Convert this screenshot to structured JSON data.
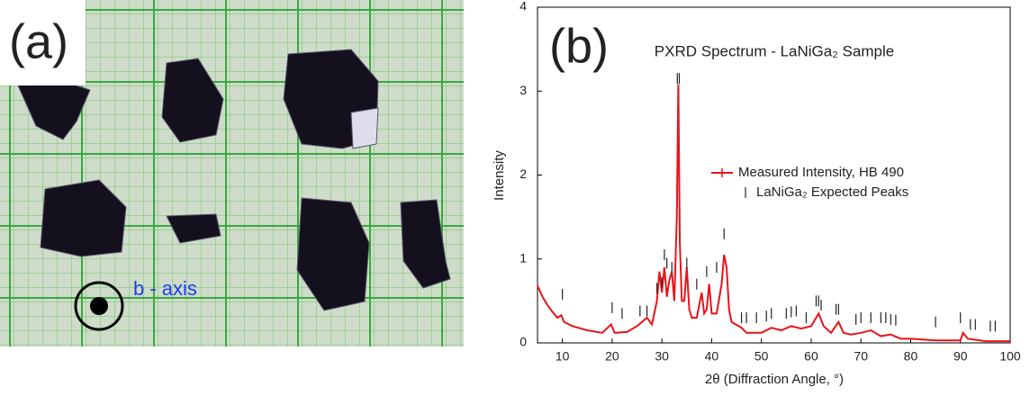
{
  "panel_a": {
    "label": "(a)",
    "annotation": "b - axis"
  },
  "chart_data": {
    "type": "line",
    "panel_label": "(b)",
    "title": "PXRD Spectrum - LaNiGa₂ Sample",
    "x_label": "2θ (Diffraction Angle, °)",
    "y_label": "Intensity",
    "xlim": [
      5,
      100
    ],
    "xticks": [
      10,
      20,
      30,
      40,
      50,
      60,
      70,
      80,
      90,
      100
    ],
    "ylim": [
      0,
      4
    ],
    "yticks": [
      0,
      1,
      2,
      3,
      4
    ],
    "grid": false,
    "series": [
      {
        "name": "Measured Intensity, HB 490",
        "color": "#e8141b",
        "marker": "+",
        "x": [
          5,
          6,
          7,
          8,
          9,
          9.8,
          10.3,
          12,
          15,
          18,
          19.8,
          20.5,
          23,
          25,
          26,
          27,
          28,
          29,
          29.5,
          30,
          30.5,
          31,
          31.5,
          32,
          32.5,
          33,
          33.3,
          33.6,
          34,
          34.5,
          35,
          35.5,
          36,
          37,
          38,
          38.5,
          39,
          39.5,
          40,
          41,
          42,
          42.5,
          43,
          43.5,
          44,
          46,
          47,
          50,
          52,
          54,
          56,
          58,
          60,
          61.5,
          62.5,
          64,
          65.5,
          66.5,
          68,
          70,
          72,
          74,
          76,
          78,
          80,
          85,
          90,
          90.5,
          91.5,
          95,
          100
        ],
        "values": [
          0.68,
          0.55,
          0.45,
          0.37,
          0.3,
          0.33,
          0.25,
          0.2,
          0.15,
          0.12,
          0.22,
          0.12,
          0.13,
          0.2,
          0.25,
          0.3,
          0.22,
          0.5,
          0.85,
          0.6,
          0.9,
          0.55,
          0.75,
          0.85,
          0.5,
          1.5,
          3.08,
          1.2,
          0.5,
          0.5,
          0.9,
          0.4,
          0.3,
          0.3,
          0.6,
          0.35,
          0.4,
          0.7,
          0.35,
          0.35,
          0.7,
          1.05,
          0.9,
          0.4,
          0.25,
          0.18,
          0.12,
          0.12,
          0.18,
          0.15,
          0.2,
          0.17,
          0.2,
          0.35,
          0.2,
          0.12,
          0.25,
          0.12,
          0.1,
          0.12,
          0.15,
          0.08,
          0.1,
          0.05,
          0.05,
          0.03,
          0.03,
          0.12,
          0.05,
          0.02,
          0.02
        ]
      },
      {
        "name": "LaNiGa₂ Expected Peaks",
        "color": "#222222",
        "marker": "|",
        "x": [
          10,
          20,
          22,
          25.6,
          27,
          29,
          30,
          30.5,
          31,
          32,
          33.1,
          33.5,
          35,
          37,
          39,
          41,
          42.5,
          46,
          47,
          49,
          51,
          52,
          55,
          56,
          57,
          59,
          61,
          61.5,
          62,
          65,
          65.5,
          69,
          70,
          72,
          74,
          75,
          76,
          77,
          85,
          90,
          92,
          93,
          96,
          97
        ],
        "values": [
          0.58,
          0.42,
          0.35,
          0.38,
          0.38,
          0.65,
          0.72,
          1.05,
          0.95,
          0.9,
          3.15,
          3.15,
          0.95,
          0.7,
          0.85,
          0.9,
          1.3,
          0.3,
          0.3,
          0.3,
          0.32,
          0.35,
          0.35,
          0.37,
          0.38,
          0.3,
          0.5,
          0.5,
          0.45,
          0.4,
          0.4,
          0.28,
          0.3,
          0.3,
          0.3,
          0.3,
          0.28,
          0.27,
          0.25,
          0.3,
          0.22,
          0.22,
          0.2,
          0.2
        ]
      }
    ]
  }
}
